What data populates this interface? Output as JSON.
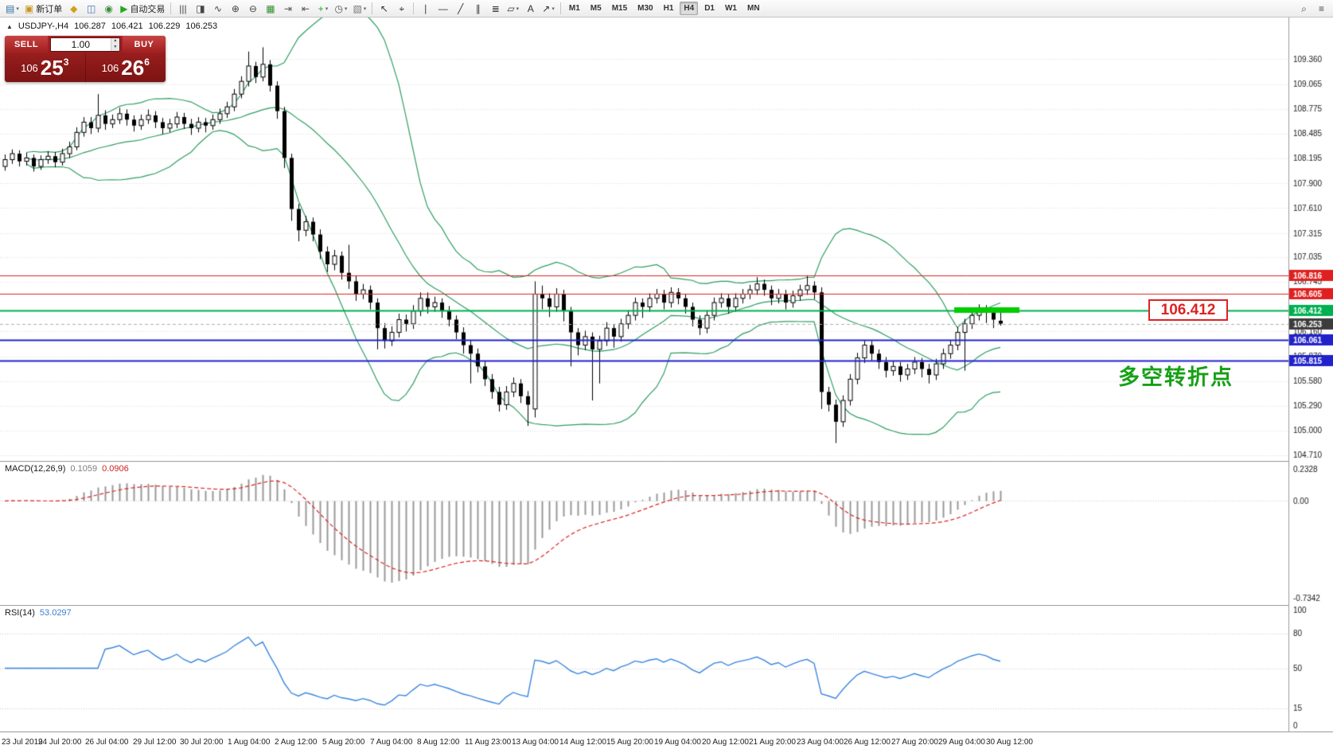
{
  "toolbar": {
    "active_timeframe": "H4",
    "caret_glyph": "▾",
    "items": [
      {
        "btn": "new-chart-button",
        "icon": "new-chart-icon",
        "glyph": "▤",
        "color": "#2f6f9f",
        "caret": true
      },
      {
        "btn": "new-order-button",
        "icon": "new-order-icon",
        "glyph": "▣",
        "color": "#c8961e",
        "label": "新订单"
      },
      {
        "btn": "market-watch-button",
        "icon": "market-watch-icon",
        "glyph": "◆",
        "color": "#d4a017"
      },
      {
        "btn": "data-window-button",
        "icon": "data-window-icon",
        "glyph": "◫",
        "color": "#4a78b0"
      },
      {
        "btn": "navigator-button",
        "icon": "navigator-icon",
        "glyph": "◉",
        "color": "#3a8f3a"
      },
      {
        "btn": "autotrading-button",
        "icon": "autotrading-play-icon",
        "glyph": "▶",
        "color": "#1faa1f",
        "label": "自动交易"
      },
      {
        "sep": true
      },
      {
        "btn": "bar-chart-button",
        "icon": "bar-chart-icon",
        "glyph": "|||",
        "color": "#444"
      },
      {
        "btn": "candlestick-chart-button",
        "icon": "candlestick-chart-icon",
        "glyph": "◨",
        "color": "#444"
      },
      {
        "btn": "line-chart-button",
        "icon": "line-chart-icon",
        "glyph": "∿",
        "color": "#444"
      },
      {
        "btn": "zoom-in-button",
        "icon": "zoom-in-icon",
        "glyph": "⊕",
        "color": "#444"
      },
      {
        "btn": "zoom-out-button",
        "icon": "zoom-out-icon",
        "glyph": "⊖",
        "color": "#444"
      },
      {
        "btn": "tile-windows-button",
        "icon": "tile-windows-icon",
        "glyph": "▦",
        "color": "#2f8f2f"
      },
      {
        "btn": "auto-scroll-button",
        "icon": "auto-scroll-icon",
        "glyph": "⇥",
        "color": "#555"
      },
      {
        "btn": "chart-shift-button",
        "icon": "chart-shift-icon",
        "glyph": "⇤",
        "color": "#555"
      },
      {
        "btn": "indicators-button",
        "icon": "indicators-add-icon",
        "glyph": "+",
        "color": "#1faa1f",
        "caret": true
      },
      {
        "btn": "periods-button",
        "icon": "periods-clock-icon",
        "glyph": "◷",
        "color": "#555",
        "caret": true
      },
      {
        "btn": "templates-button",
        "icon": "templates-icon",
        "glyph": "▧",
        "color": "#777",
        "caret": true
      },
      {
        "sep": true
      },
      {
        "btn": "cursor-button",
        "icon": "cursor-icon",
        "glyph": "↖",
        "color": "#333"
      },
      {
        "btn": "crosshair-button",
        "icon": "crosshair-icon",
        "glyph": "⌖",
        "color": "#333"
      },
      {
        "sep": true
      },
      {
        "btn": "vertical-line-button",
        "icon": "vertical-line-icon",
        "glyph": "∣",
        "color": "#333"
      },
      {
        "btn": "horizontal-line-button",
        "icon": "horizontal-line-icon",
        "glyph": "―",
        "color": "#333"
      },
      {
        "btn": "trendline-button",
        "icon": "trendline-icon",
        "glyph": "╱",
        "color": "#333"
      },
      {
        "btn": "channel-button",
        "icon": "channel-icon",
        "glyph": "∥",
        "color": "#333"
      },
      {
        "btn": "fibonacci-button",
        "icon": "fibonacci-icon",
        "glyph": "≣",
        "color": "#333"
      },
      {
        "btn": "shapes-button",
        "icon": "shapes-icon",
        "glyph": "▱",
        "color": "#333",
        "caret": true
      },
      {
        "btn": "text-tool-button",
        "icon": "text-tool-icon",
        "glyph": "A",
        "color": "#333"
      },
      {
        "btn": "arrows-button",
        "icon": "arrow-tool-icon",
        "glyph": "↗",
        "color": "#333",
        "caret": true
      },
      {
        "sep": true
      },
      {
        "tf": "M1"
      },
      {
        "tf": "M5"
      },
      {
        "tf": "M15"
      },
      {
        "tf": "M30"
      },
      {
        "tf": "H1"
      },
      {
        "tf": "H4"
      },
      {
        "tf": "D1"
      },
      {
        "tf": "W1"
      },
      {
        "tf": "MN"
      },
      {
        "spacer": true
      },
      {
        "btn": "search-button",
        "icon": "search-icon",
        "glyph": "⌕",
        "color": "#444"
      },
      {
        "btn": "menu-button",
        "icon": "menu-icon",
        "glyph": "≡",
        "color": "#444"
      }
    ]
  },
  "chart": {
    "marker_glyph": "▲",
    "symbol_title": "USDJPY-,H4",
    "open": "106.287",
    "high": "106.421",
    "low": "106.229",
    "close": "106.253",
    "callout_price": "106.412",
    "annotation_text": "多空转折点",
    "trade_panel": {
      "sell_label": "SELL",
      "buy_label": "BUY",
      "volume": "1.00",
      "spin_up": "▲",
      "spin_down": "▼",
      "bid": {
        "prefix": "106",
        "big": "25",
        "sup": "3"
      },
      "ask": {
        "prefix": "106",
        "big": "26",
        "sup": "6"
      }
    }
  },
  "indicators": {
    "macd": {
      "name": "MACD(12,26,9)",
      "v1": "0.1059",
      "v2": "0.0906"
    },
    "rsi": {
      "name": "RSI(14)",
      "v": "53.0297"
    }
  },
  "chart_data": {
    "type": "candlestick",
    "symbol": "USDJPY",
    "timeframe": "H4",
    "price_range": [
      104.64,
      109.85
    ],
    "price_axis_labels": [
      "109.360",
      "109.065",
      "108.775",
      "108.485",
      "108.195",
      "107.900",
      "107.610",
      "107.315",
      "107.035",
      "106.745",
      "106.160",
      "105.870",
      "105.580",
      "105.290",
      "105.000",
      "104.710"
    ],
    "hlines": [
      {
        "price": 106.816,
        "color": "#e02020",
        "label": "106.816",
        "line_width": 1
      },
      {
        "price": 106.605,
        "color": "#e02020",
        "label": "106.605",
        "line_width": 1
      },
      {
        "price": 106.412,
        "color": "#00b050",
        "label": "106.412",
        "line_width": 2
      },
      {
        "price": 106.061,
        "color": "#2222cc",
        "label": "106.061",
        "line_width": 2
      },
      {
        "price": 105.815,
        "color": "#2222cc",
        "label": "105.815",
        "line_width": 2
      }
    ],
    "current_price": {
      "value": 106.253,
      "label": "106.253",
      "badge_color": "#3c3c3c"
    },
    "highlight_segment": {
      "price": 106.412,
      "from_bar": 133,
      "to_bar": 139,
      "color": "#00cc00"
    },
    "bollinger": {
      "period": 20,
      "deviation": 2,
      "color": "#2e9e62"
    },
    "macd": {
      "label": "MACD(12,26,9)",
      "values": [
        "0.1059",
        "0.0906"
      ],
      "axis": [
        "0.2328",
        "0.00",
        "-0.7342"
      ],
      "range": [
        -0.78,
        0.3
      ],
      "hist_color": "#999999",
      "signal_color": "#dd2222"
    },
    "rsi": {
      "label": "RSI(14)",
      "value": "53.0297",
      "axis": [
        "100",
        "80",
        "50",
        "15",
        "0"
      ],
      "levels": [
        80,
        50,
        15
      ],
      "color": "#3a87e0"
    },
    "time_axis": [
      "23 Jul 2019",
      "24 Jul 20:00",
      "26 Jul 04:00",
      "29 Jul 12:00",
      "30 Jul 20:00",
      "1 Aug 04:00",
      "2 Aug 12:00",
      "5 Aug 20:00",
      "7 Aug 04:00",
      "8 Aug 12:00",
      "11 Aug 23:00",
      "13 Aug 04:00",
      "14 Aug 12:00",
      "15 Aug 20:00",
      "19 Aug 04:00",
      "20 Aug 12:00",
      "21 Aug 20:00",
      "23 Aug 04:00",
      "26 Aug 12:00",
      "27 Aug 20:00",
      "29 Aug 04:00",
      "30 Aug 12:00"
    ],
    "candles": [
      [
        108.1,
        108.24,
        108.05,
        108.18
      ],
      [
        108.18,
        108.3,
        108.13,
        108.25
      ],
      [
        108.25,
        108.29,
        108.1,
        108.16
      ],
      [
        108.16,
        108.26,
        108.11,
        108.2
      ],
      [
        108.2,
        108.24,
        108.04,
        108.1
      ],
      [
        108.1,
        108.23,
        108.06,
        108.18
      ],
      [
        108.18,
        108.28,
        108.13,
        108.22
      ],
      [
        108.22,
        108.27,
        108.09,
        108.15
      ],
      [
        108.15,
        108.31,
        108.11,
        108.25
      ],
      [
        108.25,
        108.39,
        108.2,
        108.33
      ],
      [
        108.33,
        108.56,
        108.29,
        108.5
      ],
      [
        108.5,
        108.68,
        108.45,
        108.62
      ],
      [
        108.62,
        108.68,
        108.48,
        108.55
      ],
      [
        108.55,
        108.95,
        108.5,
        108.7
      ],
      [
        108.7,
        108.76,
        108.53,
        108.6
      ],
      [
        108.6,
        108.71,
        108.55,
        108.65
      ],
      [
        108.65,
        108.79,
        108.6,
        108.72
      ],
      [
        108.72,
        108.77,
        108.58,
        108.65
      ],
      [
        108.65,
        108.7,
        108.51,
        108.58
      ],
      [
        108.58,
        108.71,
        108.53,
        108.65
      ],
      [
        108.65,
        108.77,
        108.6,
        108.7
      ],
      [
        108.7,
        108.75,
        108.55,
        108.62
      ],
      [
        108.62,
        108.67,
        108.48,
        108.55
      ],
      [
        108.55,
        108.66,
        108.5,
        108.6
      ],
      [
        108.6,
        108.74,
        108.55,
        108.68
      ],
      [
        108.68,
        108.73,
        108.54,
        108.6
      ],
      [
        108.6,
        108.66,
        108.47,
        108.55
      ],
      [
        108.55,
        108.68,
        108.5,
        108.62
      ],
      [
        108.62,
        108.67,
        108.5,
        108.58
      ],
      [
        108.58,
        108.71,
        108.53,
        108.65
      ],
      [
        108.65,
        108.78,
        108.6,
        108.72
      ],
      [
        108.72,
        108.86,
        108.67,
        108.8
      ],
      [
        108.8,
        109.01,
        108.75,
        108.95
      ],
      [
        108.95,
        109.16,
        108.9,
        109.1
      ],
      [
        109.1,
        109.45,
        109.04,
        109.28
      ],
      [
        109.28,
        109.33,
        109.08,
        109.15
      ],
      [
        109.15,
        109.5,
        109.1,
        109.3
      ],
      [
        109.3,
        109.35,
        108.98,
        109.05
      ],
      [
        109.05,
        109.1,
        108.66,
        108.75
      ],
      [
        108.75,
        108.8,
        108.08,
        108.2
      ],
      [
        108.2,
        108.25,
        107.46,
        107.6
      ],
      [
        107.6,
        107.66,
        107.22,
        107.35
      ],
      [
        107.35,
        107.52,
        107.28,
        107.45
      ],
      [
        107.45,
        107.5,
        107.22,
        107.3
      ],
      [
        107.3,
        107.36,
        107.01,
        107.1
      ],
      [
        107.1,
        107.16,
        106.86,
        106.95
      ],
      [
        106.95,
        107.12,
        106.88,
        107.05
      ],
      [
        107.05,
        107.1,
        106.77,
        106.85
      ],
      [
        106.85,
        107.18,
        106.66,
        106.75
      ],
      [
        106.75,
        106.81,
        106.52,
        106.6
      ],
      [
        106.6,
        106.72,
        106.54,
        106.65
      ],
      [
        106.65,
        106.7,
        106.42,
        106.5
      ],
      [
        106.5,
        106.55,
        105.95,
        106.2
      ],
      [
        106.2,
        106.26,
        105.96,
        106.05
      ],
      [
        106.05,
        106.22,
        105.99,
        106.15
      ],
      [
        106.15,
        106.37,
        106.09,
        106.3
      ],
      [
        106.3,
        106.36,
        106.16,
        106.25
      ],
      [
        106.25,
        106.47,
        106.19,
        106.4
      ],
      [
        106.4,
        106.62,
        106.34,
        106.55
      ],
      [
        106.55,
        106.62,
        106.37,
        106.45
      ],
      [
        106.45,
        106.57,
        106.39,
        106.5
      ],
      [
        106.5,
        106.55,
        106.32,
        106.4
      ],
      [
        106.4,
        106.46,
        106.22,
        106.3
      ],
      [
        106.3,
        106.35,
        106.07,
        106.15
      ],
      [
        106.15,
        106.21,
        105.9,
        106.0
      ],
      [
        106.0,
        106.06,
        105.55,
        105.9
      ],
      [
        105.9,
        105.96,
        105.68,
        105.75
      ],
      [
        105.75,
        105.81,
        105.52,
        105.6
      ],
      [
        105.6,
        105.66,
        105.37,
        105.45
      ],
      [
        105.45,
        105.51,
        105.22,
        105.3
      ],
      [
        105.3,
        105.52,
        105.24,
        105.45
      ],
      [
        105.45,
        105.62,
        105.39,
        105.55
      ],
      [
        105.55,
        105.6,
        105.32,
        105.4
      ],
      [
        105.4,
        105.46,
        105.05,
        105.3
      ],
      [
        105.25,
        106.75,
        105.15,
        106.6
      ],
      [
        106.6,
        106.7,
        106.42,
        106.55
      ],
      [
        106.55,
        106.61,
        106.33,
        106.45
      ],
      [
        106.45,
        106.67,
        106.39,
        106.6
      ],
      [
        106.6,
        106.65,
        106.28,
        106.4
      ],
      [
        106.4,
        106.45,
        105.75,
        106.15
      ],
      [
        106.15,
        106.2,
        105.88,
        106.0
      ],
      [
        106.0,
        106.17,
        105.94,
        106.1
      ],
      [
        106.1,
        106.15,
        105.35,
        105.95
      ],
      [
        105.95,
        106.11,
        105.55,
        106.05
      ],
      [
        106.05,
        106.27,
        105.99,
        106.2
      ],
      [
        106.2,
        106.25,
        105.97,
        106.1
      ],
      [
        106.1,
        106.31,
        106.04,
        106.25
      ],
      [
        106.25,
        106.41,
        106.19,
        106.35
      ],
      [
        106.35,
        106.56,
        106.29,
        106.5
      ],
      [
        106.5,
        106.55,
        106.32,
        106.45
      ],
      [
        106.45,
        106.61,
        106.39,
        106.55
      ],
      [
        106.55,
        106.66,
        106.49,
        106.6
      ],
      [
        106.6,
        106.65,
        106.42,
        106.5
      ],
      [
        106.5,
        106.68,
        106.44,
        106.62
      ],
      [
        106.62,
        106.67,
        106.48,
        106.55
      ],
      [
        106.55,
        106.6,
        106.37,
        106.45
      ],
      [
        106.45,
        106.5,
        106.22,
        106.3
      ],
      [
        106.3,
        106.35,
        106.12,
        106.2
      ],
      [
        106.2,
        106.41,
        106.14,
        106.35
      ],
      [
        106.35,
        106.56,
        106.29,
        106.5
      ],
      [
        106.5,
        106.61,
        106.44,
        106.55
      ],
      [
        106.55,
        106.6,
        106.37,
        106.45
      ],
      [
        106.45,
        106.61,
        106.39,
        106.55
      ],
      [
        106.55,
        106.66,
        106.49,
        106.6
      ],
      [
        106.6,
        106.71,
        106.54,
        106.65
      ],
      [
        106.65,
        106.8,
        106.59,
        106.72
      ],
      [
        106.72,
        106.77,
        106.58,
        106.65
      ],
      [
        106.65,
        106.7,
        106.47,
        106.55
      ],
      [
        106.55,
        106.66,
        106.49,
        106.6
      ],
      [
        106.6,
        106.65,
        106.42,
        106.5
      ],
      [
        106.5,
        106.64,
        106.44,
        106.58
      ],
      [
        106.58,
        106.71,
        106.52,
        106.65
      ],
      [
        106.65,
        106.82,
        106.59,
        106.7
      ],
      [
        106.7,
        106.75,
        106.54,
        106.62
      ],
      [
        106.62,
        106.68,
        105.25,
        105.45
      ],
      [
        105.45,
        105.51,
        105.22,
        105.3
      ],
      [
        105.3,
        105.36,
        104.85,
        105.1
      ],
      [
        105.1,
        105.41,
        105.04,
        105.35
      ],
      [
        105.35,
        105.66,
        105.29,
        105.6
      ],
      [
        105.6,
        105.91,
        105.54,
        105.85
      ],
      [
        105.85,
        106.06,
        105.79,
        106.0
      ],
      [
        106.0,
        106.05,
        105.82,
        105.9
      ],
      [
        105.9,
        105.95,
        105.72,
        105.8
      ],
      [
        105.8,
        105.86,
        105.62,
        105.7
      ],
      [
        105.7,
        105.81,
        105.64,
        105.75
      ],
      [
        105.75,
        105.8,
        105.57,
        105.65
      ],
      [
        105.65,
        105.78,
        105.59,
        105.72
      ],
      [
        105.72,
        105.86,
        105.66,
        105.8
      ],
      [
        105.8,
        105.85,
        105.62,
        105.72
      ],
      [
        105.72,
        105.78,
        105.55,
        105.65
      ],
      [
        105.65,
        105.84,
        105.59,
        105.78
      ],
      [
        105.78,
        105.96,
        105.72,
        105.9
      ],
      [
        105.9,
        106.06,
        105.84,
        106.0
      ],
      [
        106.0,
        106.21,
        105.94,
        106.15
      ],
      [
        106.15,
        106.31,
        105.7,
        106.25
      ],
      [
        106.25,
        106.41,
        106.19,
        106.35
      ],
      [
        106.35,
        106.48,
        106.29,
        106.42
      ],
      [
        106.42,
        106.47,
        106.26,
        106.38
      ],
      [
        106.38,
        106.43,
        106.2,
        106.3
      ],
      [
        106.287,
        106.421,
        106.229,
        106.253
      ]
    ]
  }
}
